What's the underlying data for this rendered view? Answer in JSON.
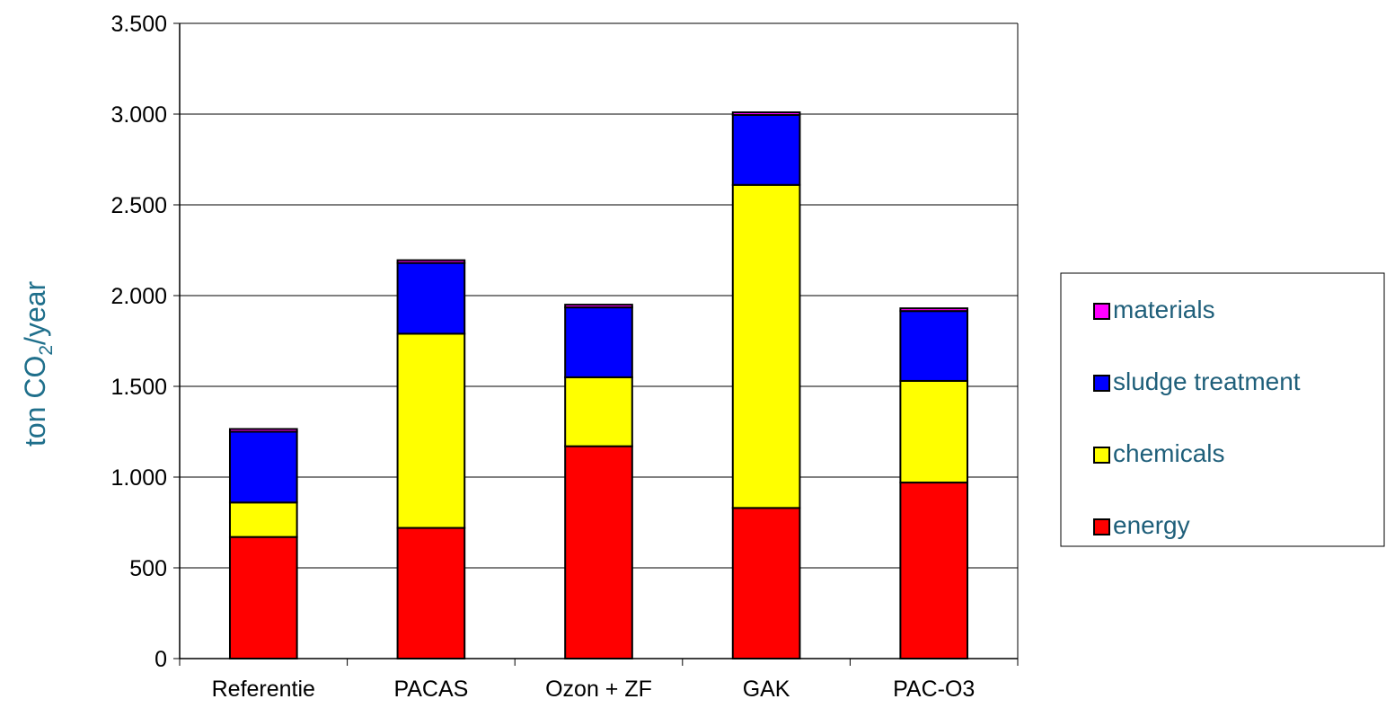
{
  "chart_data": {
    "type": "bar",
    "stacked": true,
    "title": "",
    "xlabel": "",
    "ylabel": {
      "prefix": "ton CO",
      "subscript": "2",
      "suffix": "/year"
    },
    "ylim": [
      0,
      3500
    ],
    "yticks": [
      {
        "value": 0,
        "label": "0"
      },
      {
        "value": 500,
        "label": "500"
      },
      {
        "value": 1000,
        "label": "1.000"
      },
      {
        "value": 1500,
        "label": "1.500"
      },
      {
        "value": 2000,
        "label": "2.000"
      },
      {
        "value": 2500,
        "label": "2.500"
      },
      {
        "value": 3000,
        "label": "3.000"
      },
      {
        "value": 3500,
        "label": "3.500"
      }
    ],
    "grid": true,
    "legend_position": "right",
    "categories": [
      "Referentie",
      "PACAS",
      "Ozon + ZF",
      "GAK",
      "PAC-O3"
    ],
    "series": [
      {
        "name": "energy",
        "color": "#ff0000",
        "values": [
          670,
          720,
          1170,
          830,
          970
        ]
      },
      {
        "name": "chemicals",
        "color": "#ffff00",
        "values": [
          190,
          1070,
          380,
          1780,
          560
        ]
      },
      {
        "name": "sludge treatment",
        "color": "#0000ff",
        "values": [
          390,
          390,
          385,
          385,
          385
        ]
      },
      {
        "name": "materials",
        "color": "#ff00ff",
        "values": [
          15,
          15,
          15,
          15,
          15
        ]
      }
    ],
    "legend_order": [
      "materials",
      "sludge treatment",
      "chemicals",
      "energy"
    ]
  }
}
